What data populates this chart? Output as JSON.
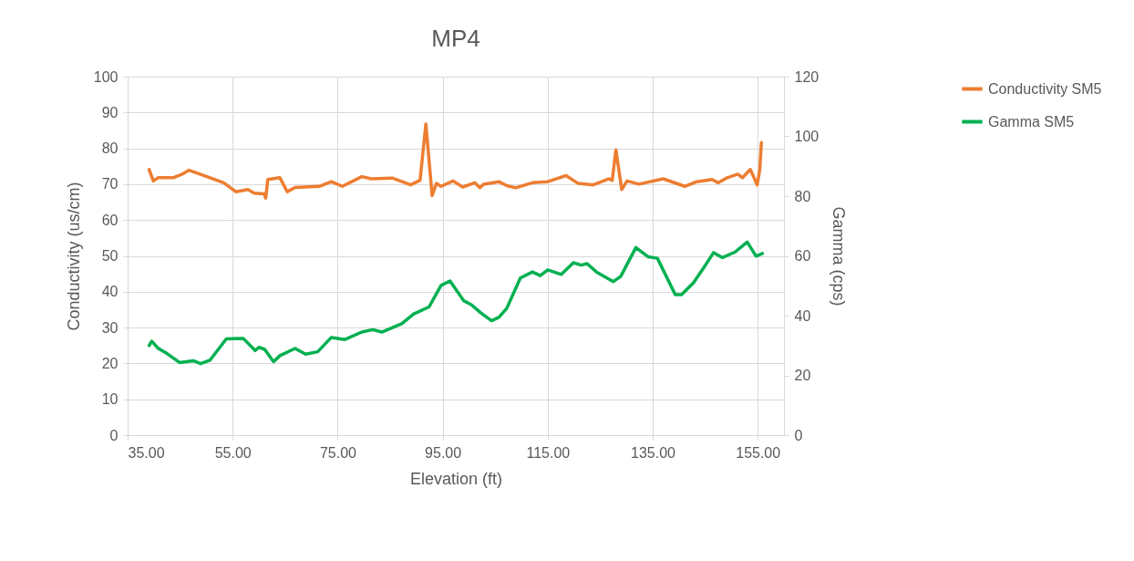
{
  "chart_data": {
    "type": "line",
    "title": "MP4",
    "xlabel": "Elevation (ft)",
    "ylabel": "Conductivity (us/cm)",
    "y2label": "Gamma (cps)",
    "xlim": [
      35,
      160
    ],
    "xticks": [
      {
        "value": 35,
        "label": "35.00"
      },
      {
        "value": 55,
        "label": "55.00"
      },
      {
        "value": 75,
        "label": "75.00"
      },
      {
        "value": 95,
        "label": "95.00"
      },
      {
        "value": 115,
        "label": "115.00"
      },
      {
        "value": 135,
        "label": "135.00"
      },
      {
        "value": 155,
        "label": "155.00"
      }
    ],
    "ylim": [
      0,
      100
    ],
    "yticks": [
      0,
      10,
      20,
      30,
      40,
      50,
      60,
      70,
      80,
      90,
      100
    ],
    "y2lim": [
      0,
      120
    ],
    "y2ticks": [
      0,
      20,
      40,
      60,
      80,
      100,
      120
    ],
    "grid": true,
    "legend": "right",
    "series": [
      {
        "name": "Conductivity SM5",
        "color": "#ed7d31",
        "x": [
          39.1,
          39.9,
          40.8,
          43.7,
          45.4,
          46.7,
          50.1,
          53.3,
          55.6,
          57.9,
          59.1,
          61.0,
          61.3,
          61.7,
          64.0,
          65.4,
          66.9,
          71.5,
          73.8,
          75.9,
          79.6,
          81.4,
          85.4,
          88.9,
          90.7,
          91.8,
          93.0,
          93.8,
          94.7,
          97.0,
          98.8,
          101.1,
          102.1,
          102.8,
          105.7,
          107.2,
          108.9,
          112.1,
          115.0,
          118.5,
          120.8,
          123.7,
          126.6,
          127.3,
          128.0,
          129.1,
          130.1,
          132.4,
          137.0,
          141.1,
          143.4,
          146.3,
          147.5,
          149.2,
          151.2,
          152.1,
          153.6,
          154.9,
          155.4,
          155.7
        ],
        "values": [
          74.1,
          70.9,
          71.8,
          71.8,
          72.8,
          73.9,
          72.1,
          70.4,
          67.9,
          68.5,
          67.5,
          67.3,
          66.1,
          71.3,
          71.8,
          67.9,
          69.1,
          69.4,
          70.7,
          69.4,
          72.1,
          71.5,
          71.7,
          69.8,
          71.1,
          86.8,
          66.8,
          70.2,
          69.4,
          70.9,
          69.2,
          70.4,
          69.0,
          70.0,
          70.7,
          69.6,
          69.0,
          70.4,
          70.7,
          72.4,
          70.2,
          69.8,
          71.5,
          71.1,
          79.6,
          68.5,
          70.9,
          70.0,
          71.5,
          69.4,
          70.7,
          71.3,
          70.4,
          71.8,
          72.8,
          71.8,
          74.1,
          69.8,
          74.1,
          81.6
        ]
      },
      {
        "name": "Gamma SM5",
        "color": "#00b050",
        "axis": "y2",
        "x": [
          39.1,
          39.6,
          40.8,
          42.5,
          44.9,
          47.5,
          48.9,
          50.7,
          53.8,
          57.0,
          59.3,
          60.0,
          61.1,
          62.8,
          64.0,
          66.9,
          68.9,
          71.2,
          73.8,
          76.4,
          79.6,
          81.7,
          83.4,
          87.2,
          89.5,
          92.4,
          94.7,
          96.4,
          99.0,
          100.5,
          102.3,
          104.3,
          105.7,
          107.2,
          109.8,
          112.1,
          113.6,
          115.0,
          117.6,
          119.9,
          121.4,
          122.5,
          124.3,
          127.5,
          128.9,
          131.8,
          134.1,
          135.9,
          139.3,
          140.5,
          142.8,
          144.6,
          146.6,
          148.3,
          150.7,
          153.0,
          154.7,
          155.9
        ],
        "values": [
          30.0,
          31.4,
          29.1,
          27.3,
          24.3,
          24.9,
          23.9,
          25.1,
          32.2,
          32.4,
          28.3,
          29.4,
          28.7,
          24.6,
          26.6,
          29.0,
          27.1,
          27.9,
          32.7,
          32.0,
          34.5,
          35.3,
          34.5,
          37.3,
          40.6,
          42.9,
          50.1,
          51.6,
          45.0,
          43.6,
          40.9,
          38.3,
          39.4,
          42.4,
          52.6,
          54.6,
          53.4,
          55.3,
          53.8,
          57.7,
          56.9,
          57.4,
          54.6,
          51.4,
          53.1,
          62.8,
          59.7,
          59.2,
          47.0,
          47.0,
          51.1,
          55.7,
          61.1,
          59.4,
          61.3,
          64.6,
          59.9,
          60.8
        ]
      }
    ]
  }
}
